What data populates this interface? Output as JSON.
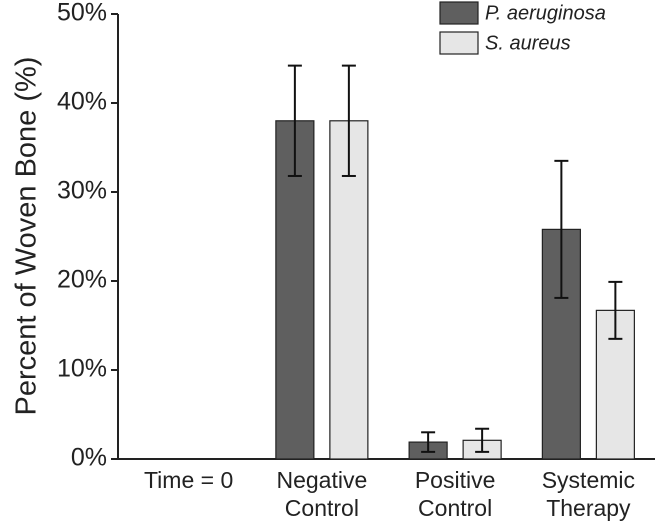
{
  "chart_data": {
    "type": "bar",
    "y_label": "Percent of Woven Bone (%)",
    "categories": [
      "Time = 0",
      "Negative Control",
      "Positive Control",
      "Systemic Therapy"
    ],
    "series": [
      {
        "name": "P. aeruginosa",
        "color": "#5f5f5f",
        "values": [
          0,
          38.0,
          1.9,
          25.8
        ],
        "errors": [
          0,
          6.2,
          1.1,
          7.7
        ]
      },
      {
        "name": "S. aureus",
        "color": "#e6e6e6",
        "values": [
          0,
          38.0,
          2.1,
          16.7
        ],
        "errors": [
          0,
          6.2,
          1.3,
          3.2
        ]
      }
    ],
    "ylim": [
      0,
      50
    ],
    "yticks": [
      {
        "value": 0,
        "label": "0%"
      },
      {
        "value": 10,
        "label": "10%"
      },
      {
        "value": 20,
        "label": "20%"
      },
      {
        "value": 30,
        "label": "30%"
      },
      {
        "value": 40,
        "label": "40%"
      },
      {
        "value": 50,
        "label": "50%"
      }
    ],
    "legend": "top-right"
  }
}
